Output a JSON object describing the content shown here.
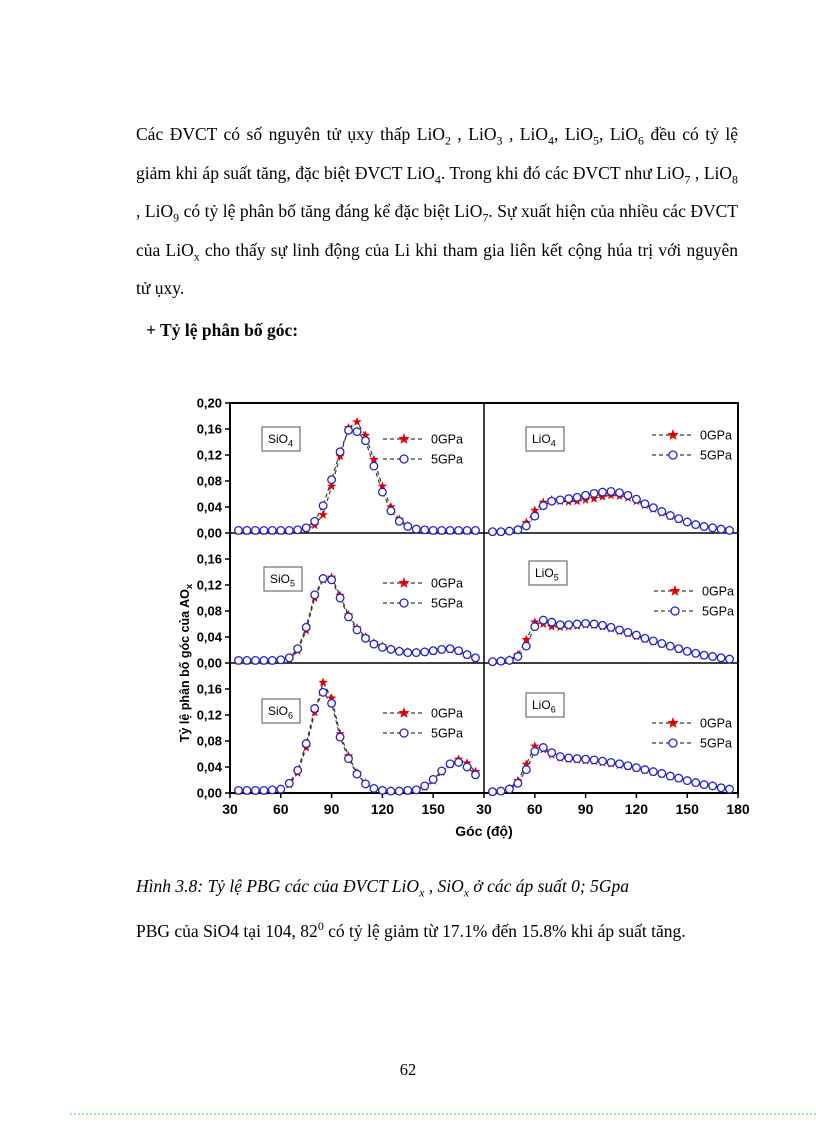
{
  "page": {
    "paragraph": [
      {
        "t": "Các ĐVCT có số nguyên tử ụxy thấp LiO"
      },
      {
        "t": "2",
        "sub": true
      },
      {
        "t": " , LiO"
      },
      {
        "t": "3",
        "sub": true
      },
      {
        "t": " , LiO"
      },
      {
        "t": "4",
        "sub": true
      },
      {
        "t": ", LiO"
      },
      {
        "t": "5",
        "sub": true
      },
      {
        "t": ", LiO"
      },
      {
        "t": "6",
        "sub": true
      },
      {
        "t": " đều có tỷ lệ giảm khi áp suất tăng, đặc biệt ĐVCT LiO"
      },
      {
        "t": "4",
        "sub": true
      },
      {
        "t": ". Trong khi đó các ĐVCT như LiO"
      },
      {
        "t": "7",
        "sub": true
      },
      {
        "t": " , LiO"
      },
      {
        "t": "8",
        "sub": true
      },
      {
        "t": " , LiO"
      },
      {
        "t": "9",
        "sub": true
      },
      {
        "t": " có tỷ lệ phân bố tăng đáng kể đặc biệt LiO"
      },
      {
        "t": "7",
        "sub": true
      },
      {
        "t": ". Sự xuất hiện của nhiều  các ĐVCT của LiO"
      },
      {
        "t": "x",
        "sub": true
      },
      {
        "t": " cho thấy sự linh động của Li khi tham gia liên kết cộng húa trị với nguyên tử ụxy."
      }
    ],
    "heading": "+ Tỷ lệ phân bố góc:",
    "caption_line1": [
      {
        "t": "Hình 3.8: Tỷ lệ PBG các của ĐVCT LiO"
      },
      {
        "t": "x",
        "sub": true
      },
      {
        "t": " , SiO"
      },
      {
        "t": "x",
        "sub": true
      },
      {
        "t": " ở các áp suất 0; 5Gpa"
      }
    ],
    "caption_line2": [
      {
        "t": "PBG của SiO4 tại 104, 82"
      },
      {
        "t": "0",
        "sup": true
      },
      {
        "t": " có tỷ lệ giảm từ 17.1% đến 15.8% khi áp suất tăng."
      }
    ],
    "page_number": "62"
  },
  "chart_data": {
    "type": "line",
    "layout": "2 columns x 3 rows, shared x axis 30-180 deg, shared y scale 0-0.20, legend inside each panel",
    "xlabel": "Góc (độ)",
    "ylabel_main": "Tỷ lệ phân bố góc của AO",
    "ylabel_sub": "x",
    "xlim": [
      30,
      180
    ],
    "ylim": [
      0,
      0.2
    ],
    "x_tick_values_left": [
      30,
      60,
      90,
      120,
      150
    ],
    "x_ticks_left": [
      "30",
      "60",
      "90",
      "120",
      "150"
    ],
    "x_tick_junction": "30",
    "x_tick_values_right": [
      60,
      90,
      120,
      150,
      180
    ],
    "x_ticks_right": [
      "60",
      "90",
      "120",
      "150",
      "180"
    ],
    "y_ticks_row1": [
      "0,20",
      "0,16",
      "0,12",
      "0,08",
      "0,04",
      "0,00"
    ],
    "y_ticks_row23": [
      "0,16",
      "0,12",
      "0,08",
      "0,04",
      "0,00"
    ],
    "legend": [
      "0GPa",
      "5GPa"
    ],
    "colors": {
      "gpa0_marker": "#e80000",
      "gpa5_marker": "#2222cc",
      "line": "#3a3a3a",
      "axis": "#000000"
    },
    "x": [
      35,
      40,
      45,
      50,
      55,
      60,
      65,
      70,
      75,
      80,
      85,
      90,
      95,
      100,
      105,
      110,
      115,
      120,
      125,
      130,
      135,
      140,
      145,
      150,
      155,
      160,
      165,
      170,
      175
    ],
    "panels": [
      {
        "label_prefix": "SiO",
        "label_sub": "4",
        "series": [
          {
            "name": "0GPa",
            "values": [
              0.003,
              0.003,
              0.003,
              0.003,
              0.003,
              0.003,
              0.003,
              0.004,
              0.006,
              0.012,
              0.028,
              0.072,
              0.118,
              0.162,
              0.171,
              0.15,
              0.113,
              0.072,
              0.04,
              0.021,
              0.011,
              0.006,
              0.004,
              0.003,
              0.003,
              0.003,
              0.003,
              0.003,
              0.003
            ]
          },
          {
            "name": "5GPa",
            "values": [
              0.004,
              0.004,
              0.004,
              0.004,
              0.004,
              0.004,
              0.004,
              0.005,
              0.008,
              0.018,
              0.042,
              0.082,
              0.125,
              0.158,
              0.156,
              0.142,
              0.103,
              0.063,
              0.034,
              0.018,
              0.01,
              0.006,
              0.005,
              0.004,
              0.004,
              0.004,
              0.004,
              0.004,
              0.004
            ]
          }
        ]
      },
      {
        "label_prefix": "LiO",
        "label_sub": "4",
        "series": [
          {
            "name": "0GPa",
            "values": [
              0.002,
              0.002,
              0.003,
              0.006,
              0.016,
              0.035,
              0.047,
              0.051,
              0.049,
              0.048,
              0.049,
              0.051,
              0.053,
              0.056,
              0.058,
              0.057,
              0.054,
              0.049,
              0.043,
              0.037,
              0.031,
              0.026,
              0.021,
              0.017,
              0.013,
              0.01,
              0.008,
              0.006,
              0.005
            ]
          },
          {
            "name": "5GPa",
            "values": [
              0.002,
              0.002,
              0.003,
              0.005,
              0.011,
              0.026,
              0.042,
              0.049,
              0.051,
              0.053,
              0.055,
              0.058,
              0.061,
              0.063,
              0.064,
              0.062,
              0.058,
              0.052,
              0.045,
              0.039,
              0.033,
              0.027,
              0.022,
              0.017,
              0.013,
              0.01,
              0.008,
              0.006,
              0.004
            ]
          }
        ]
      },
      {
        "label_prefix": "SiO",
        "label_sub": "5",
        "series": [
          {
            "name": "0GPa",
            "values": [
              0.003,
              0.003,
              0.003,
              0.003,
              0.003,
              0.004,
              0.006,
              0.019,
              0.05,
              0.1,
              0.128,
              0.132,
              0.104,
              0.074,
              0.054,
              0.04,
              0.031,
              0.026,
              0.022,
              0.019,
              0.017,
              0.016,
              0.017,
              0.018,
              0.02,
              0.021,
              0.018,
              0.012,
              0.007
            ]
          },
          {
            "name": "5GPa",
            "values": [
              0.004,
              0.004,
              0.004,
              0.004,
              0.004,
              0.005,
              0.008,
              0.022,
              0.055,
              0.105,
              0.13,
              0.128,
              0.1,
              0.071,
              0.051,
              0.038,
              0.029,
              0.024,
              0.021,
              0.018,
              0.016,
              0.016,
              0.017,
              0.019,
              0.021,
              0.022,
              0.019,
              0.013,
              0.008
            ]
          }
        ]
      },
      {
        "label_prefix": "LiO",
        "label_sub": "5",
        "series": [
          {
            "name": "0GPa",
            "values": [
              0.002,
              0.003,
              0.005,
              0.013,
              0.036,
              0.063,
              0.06,
              0.056,
              0.055,
              0.056,
              0.057,
              0.059,
              0.058,
              0.056,
              0.053,
              0.049,
              0.045,
              0.041,
              0.037,
              0.033,
              0.029,
              0.025,
              0.021,
              0.018,
              0.015,
              0.012,
              0.01,
              0.008,
              0.006
            ]
          },
          {
            "name": "5GPa",
            "values": [
              0.002,
              0.003,
              0.004,
              0.01,
              0.026,
              0.056,
              0.066,
              0.063,
              0.059,
              0.059,
              0.06,
              0.061,
              0.06,
              0.058,
              0.055,
              0.051,
              0.047,
              0.043,
              0.038,
              0.034,
              0.03,
              0.026,
              0.022,
              0.018,
              0.015,
              0.012,
              0.01,
              0.008,
              0.006
            ]
          }
        ]
      },
      {
        "label_prefix": "SiO",
        "label_sub": "6",
        "series": [
          {
            "name": "0GPa",
            "values": [
              0.003,
              0.003,
              0.003,
              0.003,
              0.004,
              0.005,
              0.013,
              0.031,
              0.07,
              0.124,
              0.17,
              0.146,
              0.091,
              0.057,
              0.031,
              0.015,
              0.007,
              0.004,
              0.003,
              0.003,
              0.003,
              0.004,
              0.009,
              0.019,
              0.032,
              0.044,
              0.052,
              0.046,
              0.033
            ]
          },
          {
            "name": "5GPa",
            "values": [
              0.004,
              0.004,
              0.004,
              0.004,
              0.005,
              0.006,
              0.015,
              0.035,
              0.076,
              0.13,
              0.155,
              0.138,
              0.086,
              0.053,
              0.029,
              0.014,
              0.007,
              0.004,
              0.003,
              0.003,
              0.004,
              0.005,
              0.011,
              0.021,
              0.034,
              0.045,
              0.047,
              0.04,
              0.028
            ]
          }
        ]
      },
      {
        "label_prefix": "LiO",
        "label_sub": "6",
        "series": [
          {
            "name": "0GPa",
            "values": [
              0.002,
              0.003,
              0.007,
              0.019,
              0.044,
              0.072,
              0.067,
              0.059,
              0.054,
              0.052,
              0.051,
              0.05,
              0.049,
              0.047,
              0.045,
              0.043,
              0.041,
              0.038,
              0.035,
              0.032,
              0.029,
              0.026,
              0.022,
              0.019,
              0.016,
              0.013,
              0.011,
              0.008,
              0.006
            ]
          },
          {
            "name": "5GPa",
            "values": [
              0.002,
              0.003,
              0.006,
              0.015,
              0.036,
              0.064,
              0.07,
              0.062,
              0.056,
              0.054,
              0.053,
              0.052,
              0.051,
              0.049,
              0.047,
              0.045,
              0.042,
              0.039,
              0.036,
              0.033,
              0.03,
              0.026,
              0.023,
              0.019,
              0.016,
              0.013,
              0.011,
              0.008,
              0.006
            ]
          }
        ]
      }
    ]
  }
}
